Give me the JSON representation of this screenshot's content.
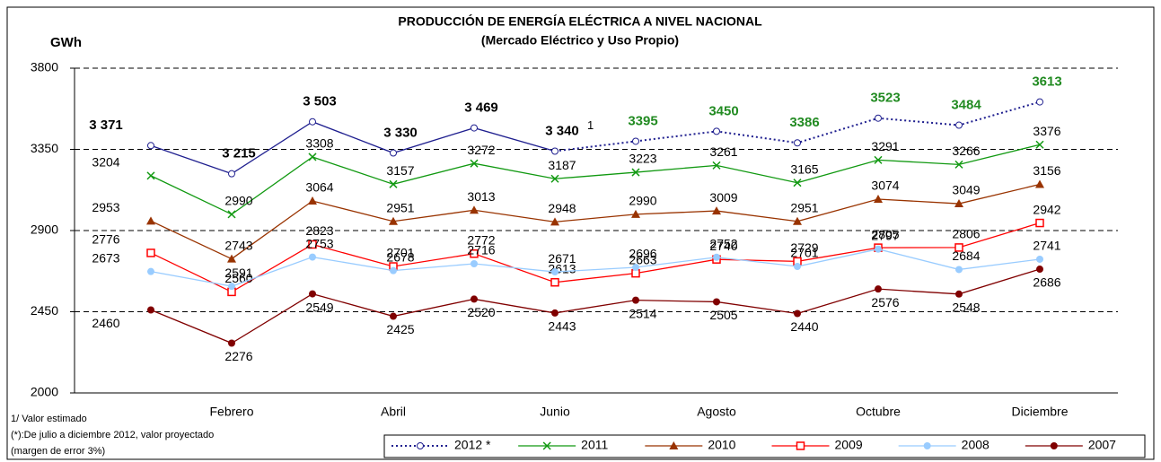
{
  "chart_data": {
    "type": "line",
    "title": "PRODUCCIÓN DE ENERGÍA ELÉCTRICA A NIVEL NACIONAL",
    "subtitle": "(Mercado Eléctrico y Uso Propio)",
    "y_label": "GWh",
    "categories": [
      null,
      "Febrero",
      null,
      "Abril",
      null,
      "Junio",
      null,
      "Agosto",
      null,
      "Octubre",
      null,
      "Diciembre"
    ],
    "ylim": [
      2000,
      3800
    ],
    "yticks": [
      2000,
      2450,
      2900,
      3350,
      3800
    ],
    "grid": true,
    "legend": "bottom-right",
    "footnotes": [
      "1/  Valor estimado",
      "(*):De julio a diciembre 2012, valor proyectado",
      "(margen de error 3%)"
    ],
    "annotations": [
      {
        "text": "1",
        "series": 0,
        "index": 5
      }
    ],
    "series": [
      {
        "name": "2012 *",
        "color": "#1f1f8f",
        "marker": "open-circle",
        "projected_from": 6,
        "projected_label_color": "#228b22",
        "values": [
          3371,
          3215,
          3503,
          3330,
          3469,
          3340,
          3395,
          3450,
          3386,
          3523,
          3484,
          3613
        ],
        "value_labels": [
          "3 371",
          "3 215",
          "3 503",
          "3 330",
          "3 469",
          "3 340",
          "3395",
          "3450",
          "3386",
          "3523",
          "3484",
          "3613"
        ]
      },
      {
        "name": "2011",
        "color": "#119911",
        "marker": "x",
        "values": [
          3204,
          2990,
          3308,
          3157,
          3272,
          3187,
          3223,
          3261,
          3165,
          3291,
          3266,
          3376
        ]
      },
      {
        "name": "2010",
        "color": "#993300",
        "marker": "triangle",
        "values": [
          2953,
          2743,
          3064,
          2951,
          3013,
          2948,
          2990,
          3009,
          2951,
          3074,
          3049,
          3156
        ]
      },
      {
        "name": "2009",
        "color": "#ff0000",
        "marker": "open-square",
        "values": [
          2776,
          2560,
          2823,
          2701,
          2772,
          2613,
          2663,
          2740,
          2729,
          2805,
          2806,
          2942
        ]
      },
      {
        "name": "2008",
        "color": "#99ccff",
        "marker": "circle",
        "values": [
          2673,
          2591,
          2753,
          2678,
          2716,
          2671,
          2696,
          2752,
          2701,
          2797,
          2684,
          2741
        ]
      },
      {
        "name": "2007",
        "color": "#800000",
        "marker": "circle",
        "values": [
          2460,
          2276,
          2549,
          2425,
          2520,
          2443,
          2514,
          2505,
          2440,
          2576,
          2548,
          2686
        ]
      }
    ]
  }
}
